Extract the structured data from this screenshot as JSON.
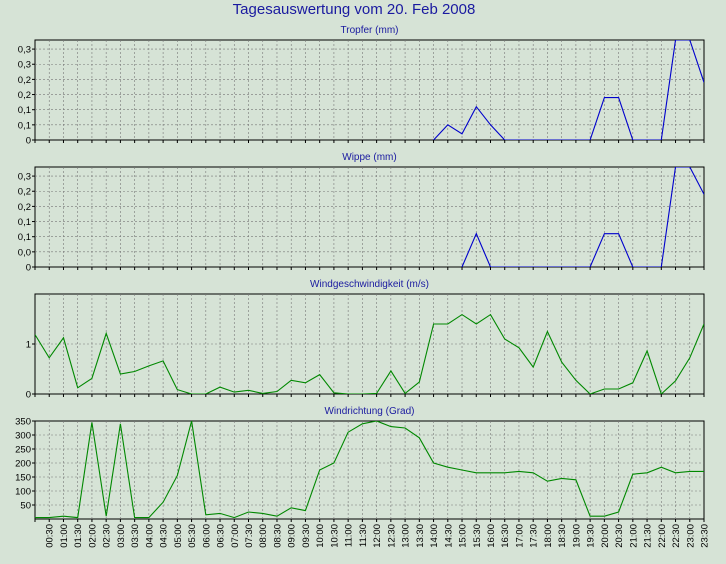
{
  "page_title": "Tagesauswertung vom 20. Feb 2008",
  "chart_data": [
    {
      "type": "line",
      "title": "Tropfer (mm)",
      "color": "#0000cc",
      "ylim": [
        0,
        0.33
      ],
      "yticks": [
        0,
        0.05,
        0.1,
        0.15,
        0.2,
        0.25,
        0.3
      ],
      "yticklabels": [
        "0",
        "0,1",
        "0,1",
        "0,2",
        "0,2",
        "0,3",
        "0,3"
      ],
      "series": [
        {
          "x": [
            14.0,
            14.5,
            15.0,
            15.5,
            16.0,
            16.5,
            19.5,
            20.0,
            20.5,
            21.0,
            21.5,
            22.0,
            22.5,
            23.0,
            23.5
          ],
          "values": [
            0,
            0.05,
            0.02,
            0.11,
            0.05,
            0,
            0,
            0.14,
            0.14,
            0,
            0,
            0,
            0.33,
            0.33,
            0.19
          ]
        }
      ]
    },
    {
      "type": "line",
      "title": "Wippe (mm)",
      "color": "#0000cc",
      "ylim": [
        0,
        0.33
      ],
      "yticks": [
        0,
        0.05,
        0.1,
        0.15,
        0.2,
        0.25,
        0.3
      ],
      "yticklabels": [
        "0",
        "0,0",
        "0,1",
        "0,1",
        "0,2",
        "0,2",
        "0,3"
      ],
      "series": [
        {
          "x": [
            15.0,
            15.5,
            16.0,
            19.5,
            20.0,
            20.5,
            21.0,
            21.5,
            22.0,
            22.5,
            23.0,
            23.5
          ],
          "values": [
            0,
            0.11,
            0,
            0,
            0.11,
            0.11,
            0,
            0,
            0,
            0.33,
            0.33,
            0.24
          ]
        }
      ]
    },
    {
      "type": "line",
      "title": "Windgeschwindigkeit (m/s)",
      "color": "#008800",
      "ylim": [
        0,
        1.6
      ],
      "yticks": [
        0,
        0.8
      ],
      "yticklabels": [
        "0",
        "1"
      ],
      "series": [
        {
          "x": [
            0.0,
            0.5,
            1.0,
            1.5,
            2.0,
            2.5,
            3.0,
            3.5,
            4.0,
            4.5,
            5.0,
            5.5,
            6.0,
            6.5,
            7.0,
            7.5,
            8.0,
            8.5,
            9.0,
            9.5,
            10.0,
            10.5,
            11.0,
            11.5,
            12.0,
            12.5,
            13.0,
            13.5,
            14.0,
            14.5,
            15.0,
            15.5,
            16.0,
            16.5,
            17.0,
            17.5,
            18.0,
            18.5,
            19.0,
            19.5,
            20.0,
            20.5,
            21.0,
            21.5,
            22.0,
            22.5,
            23.0,
            23.5
          ],
          "values": [
            0.95,
            0.58,
            0.9,
            0.1,
            0.25,
            0.97,
            0.32,
            0.36,
            0.45,
            0.53,
            0.07,
            0.0,
            0.0,
            0.11,
            0.03,
            0.06,
            0.01,
            0.04,
            0.22,
            0.18,
            0.31,
            0.02,
            0.0,
            0.0,
            0.01,
            0.37,
            0.01,
            0.19,
            1.12,
            1.12,
            1.27,
            1.12,
            1.27,
            0.88,
            0.74,
            0.43,
            1.0,
            0.51,
            0.22,
            0.0,
            0.08,
            0.08,
            0.18,
            0.69,
            0.0,
            0.21,
            0.58,
            1.12
          ]
        }
      ]
    },
    {
      "type": "line",
      "title": "Windrichtung (Grad)",
      "color": "#008800",
      "ylim": [
        0,
        350
      ],
      "yticks": [
        50,
        100,
        150,
        200,
        250,
        300,
        350
      ],
      "yticklabels": [
        "50",
        "100",
        "150",
        "200",
        "250",
        "300",
        "350"
      ],
      "series": [
        {
          "x": [
            0.0,
            0.5,
            1.0,
            1.5,
            2.0,
            2.5,
            3.0,
            3.5,
            4.0,
            4.5,
            5.0,
            5.5,
            6.0,
            6.5,
            7.0,
            7.5,
            8.0,
            8.5,
            9.0,
            9.5,
            10.0,
            10.5,
            11.0,
            11.5,
            12.0,
            12.5,
            13.0,
            13.5,
            14.0,
            14.5,
            15.0,
            15.5,
            16.0,
            16.5,
            17.0,
            17.5,
            18.0,
            18.5,
            19.0,
            19.5,
            20.0,
            20.5,
            21.0,
            21.5,
            22.0,
            22.5,
            23.0,
            23.5
          ],
          "values": [
            5,
            5,
            10,
            5,
            345,
            10,
            340,
            5,
            5,
            60,
            155,
            350,
            15,
            20,
            5,
            25,
            20,
            10,
            40,
            30,
            175,
            200,
            310,
            340,
            350,
            330,
            325,
            290,
            200,
            185,
            175,
            165,
            165,
            165,
            170,
            165,
            135,
            145,
            140,
            10,
            10,
            25,
            160,
            165,
            185,
            165,
            170,
            170
          ]
        }
      ]
    }
  ],
  "x_axis": {
    "labels": [
      "00:30",
      "01:00",
      "01:30",
      "02:00",
      "02:30",
      "03:00",
      "03:30",
      "04:00",
      "04:30",
      "05:00",
      "05:30",
      "06:00",
      "06:30",
      "07:00",
      "07:30",
      "08:00",
      "08:30",
      "09:00",
      "09:30",
      "10:00",
      "10:30",
      "11:00",
      "11:30",
      "12:00",
      "12:30",
      "13:00",
      "13:30",
      "14:00",
      "14:30",
      "15:00",
      "15:30",
      "16:00",
      "16:30",
      "17:00",
      "17:30",
      "18:00",
      "18:30",
      "19:00",
      "19:30",
      "20:00",
      "20:30",
      "21:00",
      "21:30",
      "22:00",
      "22:30",
      "23:00",
      "23:30"
    ]
  }
}
